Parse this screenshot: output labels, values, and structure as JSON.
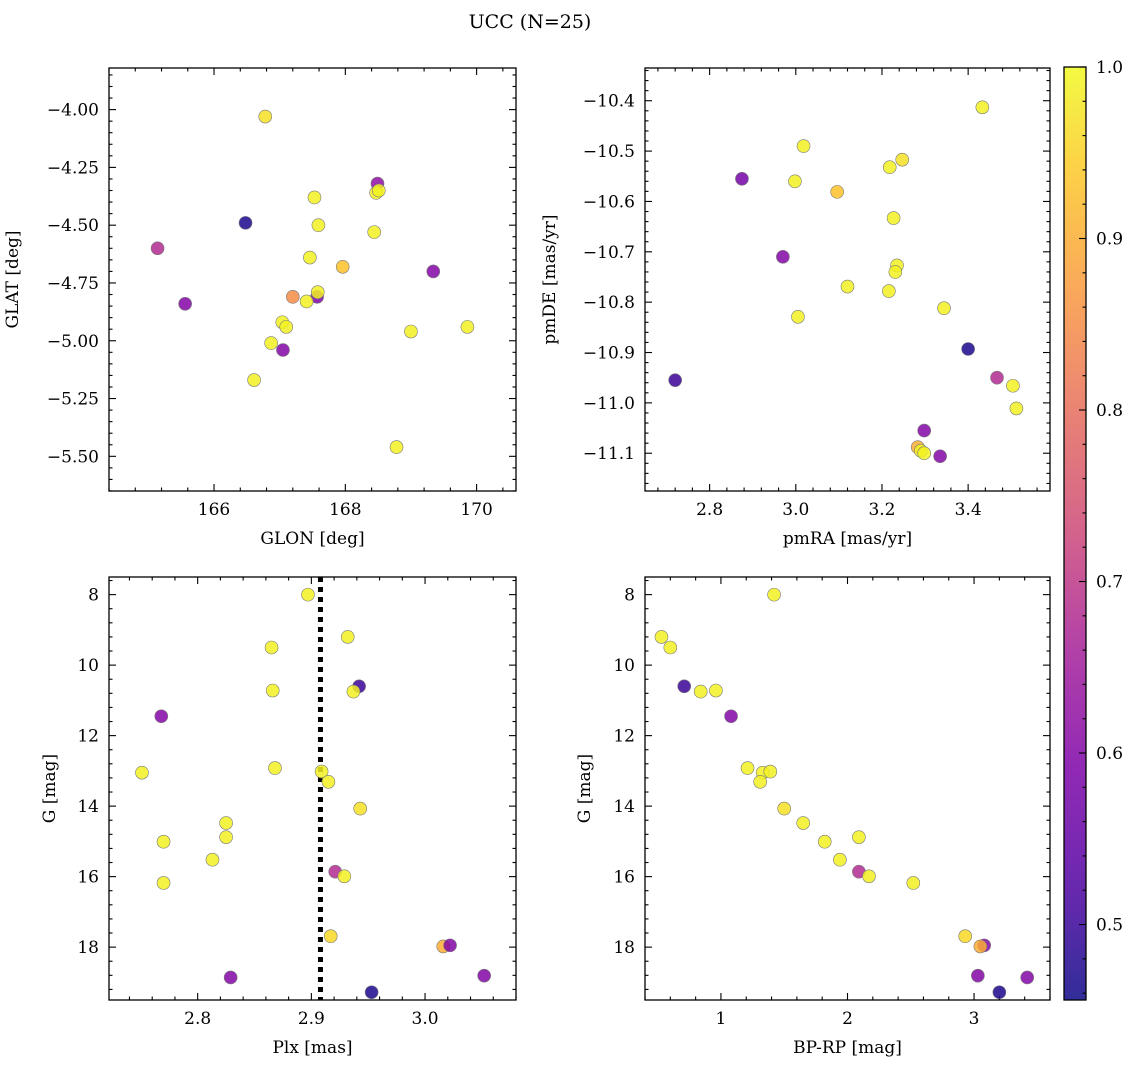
{
  "figure": {
    "title": "UCC (N=25)"
  },
  "colorbar": {
    "colormap": "plasma",
    "range": [
      0.456,
      1.0
    ],
    "ticks": [
      0.5,
      0.6,
      0.7,
      0.8,
      0.9,
      1.0
    ],
    "tick_labels": [
      "0.5",
      "0.6",
      "0.7",
      "0.8",
      "0.9",
      "1.0"
    ]
  },
  "chart_data": [
    {
      "type": "scatter",
      "id": "glon-glat",
      "xlabel": "GLON [deg]",
      "ylabel": "GLAT [deg]",
      "xlim": [
        164.4,
        170.6
      ],
      "ylim": [
        -5.65,
        -3.82
      ],
      "yinverted": false,
      "xticks": [
        166,
        168,
        170
      ],
      "xtick_labels": [
        "166",
        "168",
        "170"
      ],
      "yticks": [
        -5.5,
        -5.25,
        -5.0,
        -4.75,
        -4.5,
        -4.25,
        -4.0
      ],
      "ytick_labels": [
        "−5.50",
        "−5.25",
        "−5.00",
        "−4.75",
        "−4.50",
        "−4.25",
        "−4.00"
      ],
      "points": [
        {
          "x": 166.78,
          "y": -4.03,
          "c": 0.97
        },
        {
          "x": 168.49,
          "y": -4.32,
          "c": 0.62
        },
        {
          "x": 168.47,
          "y": -4.36,
          "c": 0.99
        },
        {
          "x": 168.51,
          "y": -4.35,
          "c": 0.99
        },
        {
          "x": 167.53,
          "y": -4.38,
          "c": 0.99
        },
        {
          "x": 166.48,
          "y": -4.49,
          "c": 0.47
        },
        {
          "x": 167.59,
          "y": -4.5,
          "c": 0.99
        },
        {
          "x": 168.44,
          "y": -4.53,
          "c": 0.99
        },
        {
          "x": 165.14,
          "y": -4.6,
          "c": 0.68
        },
        {
          "x": 167.46,
          "y": -4.64,
          "c": 0.99
        },
        {
          "x": 167.96,
          "y": -4.68,
          "c": 0.93
        },
        {
          "x": 169.34,
          "y": -4.7,
          "c": 0.6
        },
        {
          "x": 167.2,
          "y": -4.81,
          "c": 0.85
        },
        {
          "x": 167.57,
          "y": -4.81,
          "c": 0.59
        },
        {
          "x": 167.58,
          "y": -4.79,
          "c": 0.99
        },
        {
          "x": 167.41,
          "y": -4.83,
          "c": 0.99
        },
        {
          "x": 165.56,
          "y": -4.84,
          "c": 0.6
        },
        {
          "x": 167.04,
          "y": -4.92,
          "c": 0.99
        },
        {
          "x": 167.1,
          "y": -4.94,
          "c": 0.99
        },
        {
          "x": 169.86,
          "y": -4.94,
          "c": 0.99
        },
        {
          "x": 169.0,
          "y": -4.96,
          "c": 0.99
        },
        {
          "x": 166.87,
          "y": -5.01,
          "c": 0.99
        },
        {
          "x": 167.05,
          "y": -5.04,
          "c": 0.6
        },
        {
          "x": 166.61,
          "y": -5.17,
          "c": 0.99
        },
        {
          "x": 168.78,
          "y": -5.46,
          "c": 0.99
        }
      ]
    },
    {
      "type": "scatter",
      "id": "pmra-pmde",
      "xlabel": "pmRA [mas/yr]",
      "ylabel": "pmDE [mas/yr]",
      "xlim": [
        2.65,
        3.59
      ],
      "ylim": [
        -11.175,
        -10.335
      ],
      "yinverted": false,
      "xticks": [
        2.8,
        3.0,
        3.2,
        3.4
      ],
      "xtick_labels": [
        "2.8",
        "3.0",
        "3.2",
        "3.4"
      ],
      "yticks": [
        -11.1,
        -11.0,
        -10.9,
        -10.8,
        -10.7,
        -10.6,
        -10.5,
        -10.4
      ],
      "ytick_labels": [
        "−11.1",
        "−11.0",
        "−10.9",
        "−10.8",
        "−10.7",
        "−10.6",
        "−10.5",
        "−10.4"
      ],
      "points": [
        {
          "x": 3.433,
          "y": -10.413,
          "c": 0.99
        },
        {
          "x": 3.018,
          "y": -10.49,
          "c": 0.99
        },
        {
          "x": 3.247,
          "y": -10.517,
          "c": 0.97
        },
        {
          "x": 3.218,
          "y": -10.532,
          "c": 0.99
        },
        {
          "x": 2.875,
          "y": -10.555,
          "c": 0.58
        },
        {
          "x": 2.998,
          "y": -10.56,
          "c": 0.99
        },
        {
          "x": 3.096,
          "y": -10.581,
          "c": 0.93
        },
        {
          "x": 3.227,
          "y": -10.633,
          "c": 0.99
        },
        {
          "x": 2.97,
          "y": -10.71,
          "c": 0.6
        },
        {
          "x": 3.235,
          "y": -10.727,
          "c": 0.99
        },
        {
          "x": 3.231,
          "y": -10.74,
          "c": 0.99
        },
        {
          "x": 3.12,
          "y": -10.769,
          "c": 0.99
        },
        {
          "x": 3.216,
          "y": -10.778,
          "c": 0.99
        },
        {
          "x": 3.344,
          "y": -10.812,
          "c": 0.99
        },
        {
          "x": 3.005,
          "y": -10.829,
          "c": 0.99
        },
        {
          "x": 3.4,
          "y": -10.893,
          "c": 0.47
        },
        {
          "x": 3.467,
          "y": -10.95,
          "c": 0.68
        },
        {
          "x": 2.72,
          "y": -10.955,
          "c": 0.5
        },
        {
          "x": 3.504,
          "y": -10.966,
          "c": 0.99
        },
        {
          "x": 3.512,
          "y": -11.011,
          "c": 0.99
        },
        {
          "x": 3.298,
          "y": -11.055,
          "c": 0.6
        },
        {
          "x": 3.283,
          "y": -11.088,
          "c": 0.9
        },
        {
          "x": 3.29,
          "y": -11.095,
          "c": 0.99
        },
        {
          "x": 3.298,
          "y": -11.1,
          "c": 0.99
        },
        {
          "x": 3.335,
          "y": -11.106,
          "c": 0.6
        }
      ]
    },
    {
      "type": "scatter",
      "id": "plx-g",
      "xlabel": "Plx [mas]",
      "ylabel": "G [mag]",
      "xlim": [
        2.722,
        3.08
      ],
      "ylim": [
        19.5,
        7.5
      ],
      "yinverted": true,
      "vline": 2.908,
      "xticks": [
        2.8,
        2.9,
        3.0
      ],
      "xtick_labels": [
        "2.8",
        "2.9",
        "3.0"
      ],
      "yticks": [
        8,
        10,
        12,
        14,
        16,
        18
      ],
      "ytick_labels": [
        "8",
        "10",
        "12",
        "14",
        "16",
        "18"
      ],
      "points": [
        {
          "x": 2.897,
          "y": 8.0,
          "c": 0.99
        },
        {
          "x": 2.932,
          "y": 9.2,
          "c": 0.99
        },
        {
          "x": 2.865,
          "y": 9.5,
          "c": 0.99
        },
        {
          "x": 2.866,
          "y": 10.72,
          "c": 0.99
        },
        {
          "x": 2.942,
          "y": 10.6,
          "c": 0.5
        },
        {
          "x": 2.937,
          "y": 10.75,
          "c": 0.99
        },
        {
          "x": 2.768,
          "y": 11.45,
          "c": 0.6
        },
        {
          "x": 2.868,
          "y": 12.92,
          "c": 0.99
        },
        {
          "x": 2.751,
          "y": 13.05,
          "c": 0.99
        },
        {
          "x": 2.909,
          "y": 13.02,
          "c": 0.99
        },
        {
          "x": 2.915,
          "y": 13.31,
          "c": 0.99
        },
        {
          "x": 2.943,
          "y": 14.07,
          "c": 0.97
        },
        {
          "x": 2.825,
          "y": 14.48,
          "c": 0.99
        },
        {
          "x": 2.825,
          "y": 14.88,
          "c": 0.99
        },
        {
          "x": 2.77,
          "y": 15.01,
          "c": 0.99
        },
        {
          "x": 2.813,
          "y": 15.52,
          "c": 0.99
        },
        {
          "x": 2.921,
          "y": 15.86,
          "c": 0.68
        },
        {
          "x": 2.929,
          "y": 15.99,
          "c": 0.99
        },
        {
          "x": 2.77,
          "y": 16.18,
          "c": 0.99
        },
        {
          "x": 2.917,
          "y": 17.69,
          "c": 0.96
        },
        {
          "x": 3.016,
          "y": 17.98,
          "c": 0.9
        },
        {
          "x": 3.022,
          "y": 17.95,
          "c": 0.6
        },
        {
          "x": 2.829,
          "y": 18.86,
          "c": 0.6
        },
        {
          "x": 3.052,
          "y": 18.81,
          "c": 0.6
        },
        {
          "x": 2.953,
          "y": 19.28,
          "c": 0.47
        }
      ]
    },
    {
      "type": "scatter",
      "id": "bprp-g",
      "xlabel": "BP-RP [mag]",
      "ylabel": "G [mag]",
      "xlim": [
        0.4,
        3.6
      ],
      "ylim": [
        19.5,
        7.5
      ],
      "yinverted": true,
      "xticks": [
        1,
        2,
        3
      ],
      "xtick_labels": [
        "1",
        "2",
        "3"
      ],
      "yticks": [
        8,
        10,
        12,
        14,
        16,
        18
      ],
      "ytick_labels": [
        "8",
        "10",
        "12",
        "14",
        "16",
        "18"
      ],
      "points": [
        {
          "x": 1.42,
          "y": 8.0,
          "c": 0.99
        },
        {
          "x": 0.53,
          "y": 9.2,
          "c": 0.99
        },
        {
          "x": 0.6,
          "y": 9.5,
          "c": 0.99
        },
        {
          "x": 0.71,
          "y": 10.6,
          "c": 0.5
        },
        {
          "x": 0.84,
          "y": 10.75,
          "c": 0.99
        },
        {
          "x": 0.96,
          "y": 10.72,
          "c": 0.99
        },
        {
          "x": 1.08,
          "y": 11.45,
          "c": 0.6
        },
        {
          "x": 1.21,
          "y": 12.92,
          "c": 0.99
        },
        {
          "x": 1.33,
          "y": 13.05,
          "c": 0.99
        },
        {
          "x": 1.39,
          "y": 13.02,
          "c": 0.99
        },
        {
          "x": 1.31,
          "y": 13.31,
          "c": 0.99
        },
        {
          "x": 1.5,
          "y": 14.07,
          "c": 0.97
        },
        {
          "x": 1.65,
          "y": 14.48,
          "c": 0.99
        },
        {
          "x": 2.09,
          "y": 14.88,
          "c": 0.99
        },
        {
          "x": 1.82,
          "y": 15.01,
          "c": 0.99
        },
        {
          "x": 1.94,
          "y": 15.52,
          "c": 0.99
        },
        {
          "x": 2.09,
          "y": 15.86,
          "c": 0.68
        },
        {
          "x": 2.17,
          "y": 15.99,
          "c": 0.99
        },
        {
          "x": 2.52,
          "y": 16.18,
          "c": 0.99
        },
        {
          "x": 2.93,
          "y": 17.69,
          "c": 0.96
        },
        {
          "x": 3.08,
          "y": 17.95,
          "c": 0.6
        },
        {
          "x": 3.05,
          "y": 17.98,
          "c": 0.9
        },
        {
          "x": 3.03,
          "y": 18.81,
          "c": 0.6
        },
        {
          "x": 3.42,
          "y": 18.86,
          "c": 0.6
        },
        {
          "x": 3.2,
          "y": 19.28,
          "c": 0.47
        }
      ]
    }
  ]
}
